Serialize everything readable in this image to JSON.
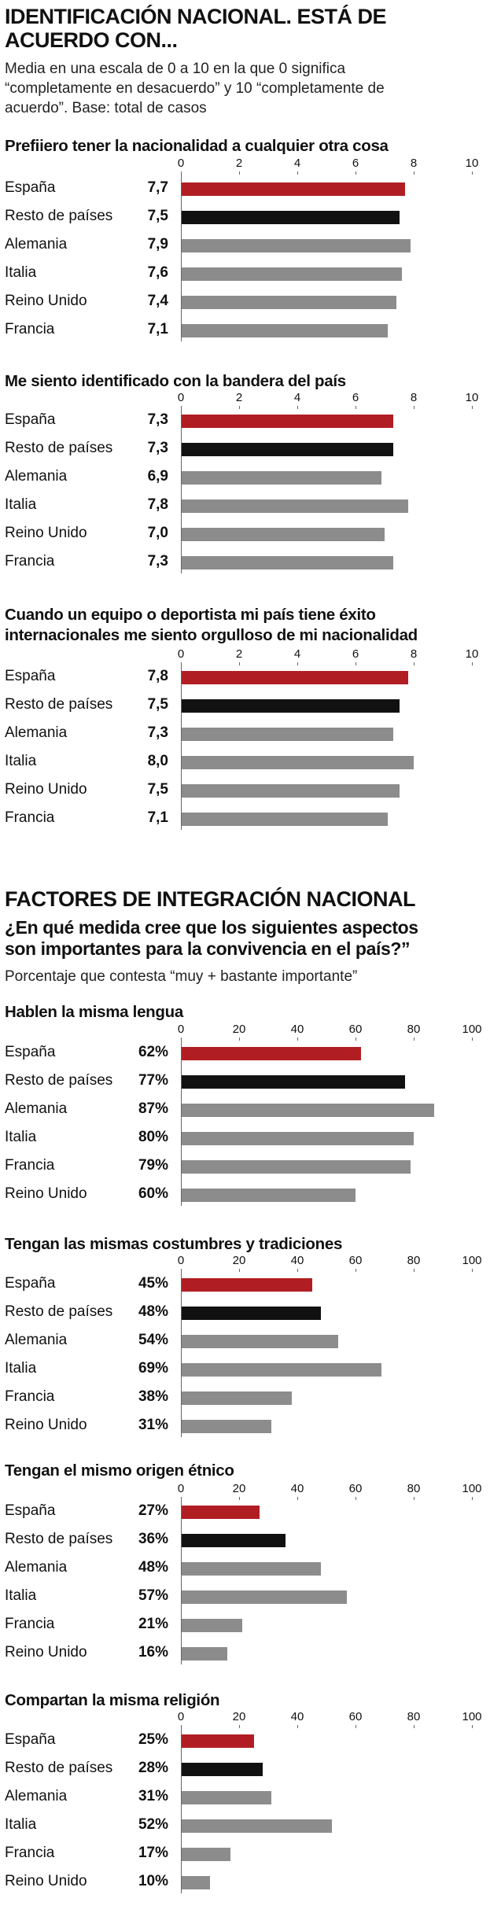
{
  "section1": {
    "title_line1": "IDENTIFICACIÓN NACIONAL. ESTÁ DE",
    "title_line2": "ACUERDO CON...",
    "subtitle_line1": "Media en una escala de 0 a 10 en la que 0 significa",
    "subtitle_line2": "“completamente en desacuerdo” y 10 “completamente de",
    "subtitle_line3": "acuerdo”. Base: total de casos"
  },
  "section2": {
    "title": "FACTORES DE INTEGRACIÓN NACIONAL",
    "question_line1": "¿En qué medida cree que los siguientes aspectos",
    "question_line2": "son importantes para la convivencia en el país?”",
    "subtitle": "Porcentaje que contesta “muy + bastante importante”"
  },
  "colors": {
    "espana": "#b01e23",
    "resto": "#111111",
    "others": "#8c8c8c"
  },
  "chart_data": [
    {
      "type": "bar",
      "title": "Prefiero tener la nacionalidad a cualquier otra cosa",
      "title_display": "Prefiiero tener la nacionalidad a cualquier otra cosa",
      "categories": [
        "España",
        "Resto de países",
        "Alemania",
        "Italia",
        "Reino Unido",
        "Francia"
      ],
      "values": [
        7.7,
        7.5,
        7.9,
        7.6,
        7.4,
        7.1
      ],
      "labels": [
        "7,7",
        "7,5",
        "7,9",
        "7,6",
        "7,4",
        "7,1"
      ],
      "xlim": [
        0,
        10
      ],
      "ticks": [
        "0",
        "2",
        "4",
        "6",
        "8",
        "10"
      ],
      "orientation": "horizontal"
    },
    {
      "type": "bar",
      "title": "Me siento identificado con la bandera del país",
      "categories": [
        "España",
        "Resto de países",
        "Alemania",
        "Italia",
        "Reino Unido",
        "Francia"
      ],
      "values": [
        7.3,
        7.3,
        6.9,
        7.8,
        7.0,
        7.3
      ],
      "labels": [
        "7,3",
        "7,3",
        "6,9",
        "7,8",
        "7,0",
        "7,3"
      ],
      "xlim": [
        0,
        10
      ],
      "ticks": [
        "0",
        "2",
        "4",
        "6",
        "8",
        "10"
      ],
      "orientation": "horizontal"
    },
    {
      "type": "bar",
      "title_line1": "Cuando un equipo o deportista mi país tiene éxito",
      "title_line2": "internacionales me siento orgulloso de mi nacionalidad",
      "categories": [
        "España",
        "Resto de países",
        "Alemania",
        "Italia",
        "Reino Unido",
        "Francia"
      ],
      "values": [
        7.8,
        7.5,
        7.3,
        8.0,
        7.5,
        7.1
      ],
      "labels": [
        "7,8",
        "7,5",
        "7,3",
        "8,0",
        "7,5",
        "7,1"
      ],
      "xlim": [
        0,
        10
      ],
      "ticks": [
        "0",
        "2",
        "4",
        "6",
        "8",
        "10"
      ],
      "orientation": "horizontal"
    },
    {
      "type": "bar",
      "title": "Hablen la misma lengua",
      "categories": [
        "España",
        "Resto de países",
        "Alemania",
        "Italia",
        "Francia",
        "Reino Unido"
      ],
      "values": [
        62,
        77,
        87,
        80,
        79,
        60
      ],
      "labels": [
        "62%",
        "77%",
        "87%",
        "80%",
        "79%",
        "60%"
      ],
      "xlim": [
        0,
        100
      ],
      "ticks": [
        "0",
        "20",
        "40",
        "60",
        "80",
        "100"
      ],
      "orientation": "horizontal"
    },
    {
      "type": "bar",
      "title": "Tengan las mismas costumbres y tradiciones",
      "categories": [
        "España",
        "Resto de países",
        "Alemania",
        "Italia",
        "Francia",
        "Reino Unido"
      ],
      "values": [
        45,
        48,
        54,
        69,
        38,
        31
      ],
      "labels": [
        "45%",
        "48%",
        "54%",
        "69%",
        "38%",
        "31%"
      ],
      "xlim": [
        0,
        100
      ],
      "ticks": [
        "0",
        "20",
        "40",
        "60",
        "80",
        "100"
      ],
      "orientation": "horizontal"
    },
    {
      "type": "bar",
      "title": "Tengan el mismo origen étnico",
      "categories": [
        "España",
        "Resto de países",
        "Alemania",
        "Italia",
        "Francia",
        "Reino Unido"
      ],
      "values": [
        27,
        36,
        48,
        57,
        21,
        16
      ],
      "labels": [
        "27%",
        "36%",
        "48%",
        "57%",
        "21%",
        "16%"
      ],
      "xlim": [
        0,
        100
      ],
      "ticks": [
        "0",
        "20",
        "40",
        "60",
        "80",
        "100"
      ],
      "orientation": "horizontal"
    },
    {
      "type": "bar",
      "title": "Compartan la misma religión",
      "categories": [
        "España",
        "Resto de países",
        "Alemania",
        "Italia",
        "Francia",
        "Reino Unido"
      ],
      "values": [
        25,
        28,
        31,
        52,
        17,
        10
      ],
      "labels": [
        "25%",
        "28%",
        "31%",
        "52%",
        "17%",
        "10%"
      ],
      "xlim": [
        0,
        100
      ],
      "ticks": [
        "0",
        "20",
        "40",
        "60",
        "80",
        "100"
      ],
      "orientation": "horizontal"
    }
  ]
}
